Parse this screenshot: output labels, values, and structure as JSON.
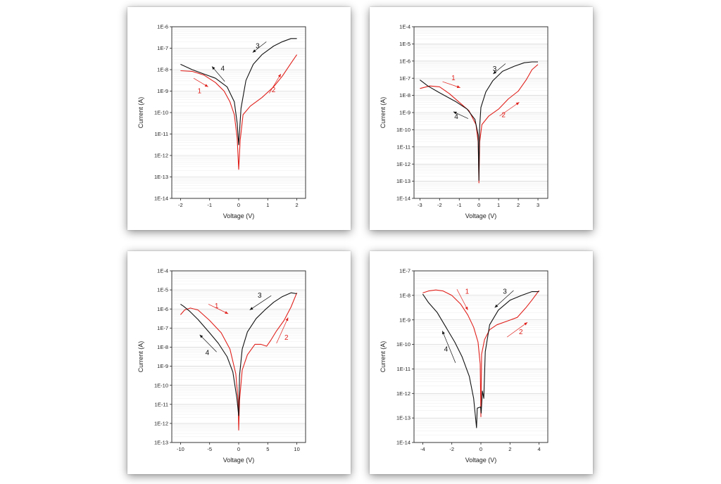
{
  "colors": {
    "red": "#e0201b",
    "black": "#111111",
    "grid_major": "#cfcfcf",
    "grid_minor": "#ececec"
  },
  "chart_data": [
    {
      "type": "line",
      "panel": "a",
      "xlabel": "Voltage (V)",
      "ylabel": "Current (A)",
      "xlim": [
        -2.3,
        2.3
      ],
      "xticks": [
        -2,
        -1,
        0,
        1,
        2
      ],
      "xtick_labels": [
        "-2",
        "-1",
        "0",
        "1",
        "2"
      ],
      "log_y": true,
      "ylim_exp": [
        -14,
        -6
      ],
      "ytick_labels": [
        "1E-14",
        "1E-13",
        "1E-12",
        "1E-11",
        "1E-10",
        "1E-9",
        "1E-8",
        "1E-7",
        "1E-6"
      ],
      "grid": true,
      "series": [
        {
          "color": "red",
          "points": [
            [
              -2,
              -8.05
            ],
            [
              -1.6,
              -8.08
            ],
            [
              -1.2,
              -8.25
            ],
            [
              -0.8,
              -8.6
            ],
            [
              -0.5,
              -9.0
            ],
            [
              -0.3,
              -9.5
            ],
            [
              -0.15,
              -10.1
            ],
            [
              -0.05,
              -11.2
            ],
            [
              0,
              -12.65
            ],
            [
              0.05,
              -11.3
            ],
            [
              0.15,
              -10.1
            ],
            [
              0.4,
              -9.7
            ],
            [
              0.8,
              -9.3
            ],
            [
              1.2,
              -8.8
            ],
            [
              1.5,
              -8.3
            ],
            [
              1.8,
              -7.7
            ],
            [
              2,
              -7.3
            ]
          ]
        },
        {
          "color": "black",
          "points": [
            [
              2,
              -6.55
            ],
            [
              1.8,
              -6.55
            ],
            [
              1.5,
              -6.7
            ],
            [
              1.2,
              -6.9
            ],
            [
              0.8,
              -7.3
            ],
            [
              0.5,
              -7.75
            ],
            [
              0.25,
              -8.5
            ],
            [
              0.08,
              -9.8
            ],
            [
              0,
              -11.5
            ],
            [
              -0.05,
              -10.5
            ],
            [
              -0.15,
              -9.5
            ],
            [
              -0.4,
              -8.8
            ],
            [
              -0.8,
              -8.4
            ],
            [
              -1.2,
              -8.2
            ],
            [
              -1.6,
              -8.0
            ],
            [
              -2,
              -7.75
            ]
          ]
        }
      ],
      "annotations": [
        {
          "text": "1",
          "color": "red",
          "x": -1.35,
          "y": -9.0,
          "arrow": [
            [
              -1.55,
              -8.4
            ],
            [
              -1.05,
              -8.8
            ]
          ]
        },
        {
          "text": "2",
          "color": "red",
          "x": 1.2,
          "y": -8.95,
          "arrow": [
            [
              1.05,
              -9.1
            ],
            [
              1.45,
              -8.2
            ]
          ]
        },
        {
          "text": "3",
          "color": "black",
          "x": 0.65,
          "y": -6.9,
          "arrow": [
            [
              0.95,
              -6.7
            ],
            [
              0.48,
              -7.2
            ]
          ]
        },
        {
          "text": "4",
          "color": "black",
          "x": -0.55,
          "y": -7.95,
          "arrow": [
            [
              -0.48,
              -8.55
            ],
            [
              -0.92,
              -7.85
            ]
          ]
        }
      ]
    },
    {
      "type": "line",
      "panel": "b",
      "xlabel": "Voltage (V)",
      "ylabel": "Current (A)",
      "xlim": [
        -3.3,
        3.5
      ],
      "xticks": [
        -3,
        -2,
        -1,
        0,
        1,
        2,
        3
      ],
      "xtick_labels": [
        "-3",
        "-2",
        "-1",
        "0",
        "1",
        "2",
        "3"
      ],
      "log_y": true,
      "ylim_exp": [
        -14,
        -4
      ],
      "ytick_labels": [
        "1E-14",
        "1E-13",
        "1E-12",
        "1E-11",
        "1E-10",
        "1E-9",
        "1E-8",
        "1E-7",
        "1E-6",
        "1E-5",
        "1E-4"
      ],
      "grid": true,
      "series": [
        {
          "color": "red",
          "points": [
            [
              -3,
              -7.6
            ],
            [
              -2.5,
              -7.45
            ],
            [
              -2,
              -7.5
            ],
            [
              -1.5,
              -7.9
            ],
            [
              -1,
              -8.4
            ],
            [
              -0.5,
              -8.9
            ],
            [
              -0.15,
              -9.7
            ],
            [
              -0.04,
              -10.7
            ],
            [
              0,
              -13.1
            ],
            [
              0.04,
              -10.7
            ],
            [
              0.15,
              -9.7
            ],
            [
              0.5,
              -9.2
            ],
            [
              1,
              -8.8
            ],
            [
              1.5,
              -8.2
            ],
            [
              2,
              -7.75
            ],
            [
              2.4,
              -7.1
            ],
            [
              2.7,
              -6.5
            ],
            [
              3,
              -6.2
            ]
          ]
        },
        {
          "color": "black",
          "points": [
            [
              3,
              -6.05
            ],
            [
              2.7,
              -6.05
            ],
            [
              2.3,
              -6.1
            ],
            [
              1.8,
              -6.3
            ],
            [
              1.2,
              -6.6
            ],
            [
              0.7,
              -7.15
            ],
            [
              0.35,
              -7.8
            ],
            [
              0.1,
              -8.7
            ],
            [
              0.03,
              -10
            ],
            [
              0,
              -12.95
            ],
            [
              -0.04,
              -10.3
            ],
            [
              -0.2,
              -9.4
            ],
            [
              -0.6,
              -8.8
            ],
            [
              -1.2,
              -8.35
            ],
            [
              -2,
              -7.85
            ],
            [
              -2.6,
              -7.45
            ],
            [
              -3,
              -7.1
            ]
          ]
        }
      ],
      "annotations": [
        {
          "text": "1",
          "color": "red",
          "x": -1.3,
          "y": -7.0,
          "arrow": [
            [
              -1.85,
              -7.2
            ],
            [
              -0.95,
              -7.55
            ]
          ]
        },
        {
          "text": "2",
          "color": "red",
          "x": 1.25,
          "y": -9.15,
          "arrow": [
            [
              1.05,
              -9.2
            ],
            [
              2.05,
              -8.4
            ]
          ]
        },
        {
          "text": "3",
          "color": "black",
          "x": 0.8,
          "y": -6.45,
          "arrow": [
            [
              1.35,
              -6.15
            ],
            [
              0.72,
              -6.75
            ]
          ]
        },
        {
          "text": "4",
          "color": "black",
          "x": -1.15,
          "y": -9.25,
          "arrow": [
            [
              -0.55,
              -9.35
            ],
            [
              -1.3,
              -8.95
            ]
          ]
        }
      ]
    },
    {
      "type": "line",
      "panel": "c",
      "xlabel": "Voltage (V)",
      "ylabel": "Current (A)",
      "xlim": [
        -11.5,
        11.5
      ],
      "xticks": [
        -10,
        -5,
        0,
        5,
        10
      ],
      "xtick_labels": [
        "-10",
        "-5",
        "0",
        "5",
        "10"
      ],
      "log_y": true,
      "ylim_exp": [
        -13,
        -4
      ],
      "ytick_labels": [
        "1E-13",
        "1E-12",
        "1E-11",
        "1E-10",
        "1E-9",
        "1E-8",
        "1E-7",
        "1E-6",
        "1E-5",
        "1E-4"
      ],
      "grid": true,
      "series": [
        {
          "color": "red",
          "points": [
            [
              -10,
              -6.3
            ],
            [
              -9.3,
              -6.05
            ],
            [
              -8.3,
              -5.95
            ],
            [
              -7,
              -6.05
            ],
            [
              -5,
              -6.6
            ],
            [
              -3,
              -7.25
            ],
            [
              -1.5,
              -8.1
            ],
            [
              -0.5,
              -9.4
            ],
            [
              -0.1,
              -10.8
            ],
            [
              0,
              -12.35
            ],
            [
              0.15,
              -10.8
            ],
            [
              0.6,
              -9.2
            ],
            [
              1.5,
              -8.4
            ],
            [
              2.8,
              -7.85
            ],
            [
              3.8,
              -7.85
            ],
            [
              4.8,
              -7.95
            ],
            [
              5.5,
              -7.65
            ],
            [
              6.5,
              -7.15
            ],
            [
              7.8,
              -6.6
            ],
            [
              9,
              -5.9
            ],
            [
              10,
              -5.15
            ]
          ]
        },
        {
          "color": "black",
          "points": [
            [
              10,
              -5.2
            ],
            [
              9,
              -5.15
            ],
            [
              7.5,
              -5.35
            ],
            [
              6,
              -5.65
            ],
            [
              4.5,
              -6.05
            ],
            [
              3,
              -6.5
            ],
            [
              1.5,
              -7.2
            ],
            [
              0.6,
              -8.1
            ],
            [
              0.15,
              -9.5
            ],
            [
              0,
              -11.6
            ],
            [
              -0.3,
              -10.7
            ],
            [
              -1,
              -9.3
            ],
            [
              -2,
              -8.5
            ],
            [
              -3.5,
              -7.8
            ],
            [
              -5,
              -7.25
            ],
            [
              -7,
              -6.55
            ],
            [
              -8.5,
              -6.1
            ],
            [
              -9.5,
              -5.85
            ],
            [
              -10,
              -5.75
            ]
          ]
        }
      ],
      "annotations": [
        {
          "text": "1",
          "color": "red",
          "x": -3.8,
          "y": -5.85,
          "arrow": [
            [
              -5.2,
              -5.75
            ],
            [
              -1.8,
              -6.25
            ]
          ]
        },
        {
          "text": "2",
          "color": "red",
          "x": 8.2,
          "y": -7.5,
          "arrow": [
            [
              6.5,
              -7.8
            ],
            [
              8.5,
              -6.45
            ]
          ]
        },
        {
          "text": "3",
          "color": "black",
          "x": 3.6,
          "y": -5.3,
          "arrow": [
            [
              5.6,
              -5.3
            ],
            [
              1.9,
              -6.05
            ]
          ]
        },
        {
          "text": "4",
          "color": "black",
          "x": -5.4,
          "y": -8.3,
          "arrow": [
            [
              -3.8,
              -8.25
            ],
            [
              -6.7,
              -7.35
            ]
          ]
        }
      ]
    },
    {
      "type": "line",
      "panel": "d",
      "xlabel": "Voltage (V)",
      "ylabel": "Current (A)",
      "xlim": [
        -4.6,
        4.6
      ],
      "xticks": [
        -4,
        -2,
        0,
        2,
        4
      ],
      "xtick_labels": [
        "-4",
        "-2",
        "0",
        "2",
        "4"
      ],
      "log_y": true,
      "ylim_exp": [
        -14,
        -7
      ],
      "ytick_labels": [
        "1E-14",
        "1E-13",
        "1E-12",
        "1E-11",
        "1E-10",
        "1E-9",
        "1E-8",
        "1E-7"
      ],
      "grid": true,
      "series": [
        {
          "color": "red",
          "points": [
            [
              -4,
              -7.9
            ],
            [
              -3.6,
              -7.82
            ],
            [
              -3.1,
              -7.78
            ],
            [
              -2.6,
              -7.82
            ],
            [
              -2,
              -8.0
            ],
            [
              -1.4,
              -8.35
            ],
            [
              -0.9,
              -8.8
            ],
            [
              -0.5,
              -9.3
            ],
            [
              -0.2,
              -9.9
            ],
            [
              -0.05,
              -10.8
            ],
            [
              0,
              -12.95
            ],
            [
              0.05,
              -10.4
            ],
            [
              0.25,
              -9.8
            ],
            [
              0.6,
              -9.4
            ],
            [
              1.1,
              -9.2
            ],
            [
              1.8,
              -9.05
            ],
            [
              2.5,
              -8.9
            ],
            [
              3.1,
              -8.5
            ],
            [
              3.5,
              -8.2
            ],
            [
              4,
              -7.8
            ]
          ]
        },
        {
          "color": "black",
          "points": [
            [
              4,
              -7.85
            ],
            [
              3.5,
              -7.85
            ],
            [
              2.8,
              -8.0
            ],
            [
              2,
              -8.2
            ],
            [
              1.2,
              -8.6
            ],
            [
              0.6,
              -9.2
            ],
            [
              0.3,
              -10.3
            ],
            [
              0.2,
              -12.2
            ],
            [
              0.1,
              -11.9
            ],
            [
              0.02,
              -12.8
            ],
            [
              -0.02,
              -12.55
            ],
            [
              -0.25,
              -12.6
            ],
            [
              -0.3,
              -13.4
            ],
            [
              -0.5,
              -12.2
            ],
            [
              -0.8,
              -11.3
            ],
            [
              -1.3,
              -10.5
            ],
            [
              -1.8,
              -9.9
            ],
            [
              -2.4,
              -9.3
            ],
            [
              -3,
              -8.7
            ],
            [
              -3.6,
              -8.3
            ],
            [
              -4,
              -7.95
            ]
          ]
        }
      ],
      "annotations": [
        {
          "text": "1",
          "color": "red",
          "x": -0.95,
          "y": -7.85,
          "arrow": [
            [
              -1.65,
              -7.75
            ],
            [
              -0.9,
              -8.6
            ]
          ]
        },
        {
          "text": "2",
          "color": "red",
          "x": 2.75,
          "y": -9.5,
          "arrow": [
            [
              1.8,
              -9.7
            ],
            [
              3.2,
              -9.1
            ]
          ]
        },
        {
          "text": "3",
          "color": "black",
          "x": 1.65,
          "y": -7.85,
          "arrow": [
            [
              2.25,
              -7.8
            ],
            [
              0.95,
              -8.5
            ]
          ]
        },
        {
          "text": "4",
          "color": "black",
          "x": -2.4,
          "y": -10.2,
          "arrow": [
            [
              -1.75,
              -10.75
            ],
            [
              -2.65,
              -9.45
            ]
          ]
        }
      ]
    }
  ]
}
